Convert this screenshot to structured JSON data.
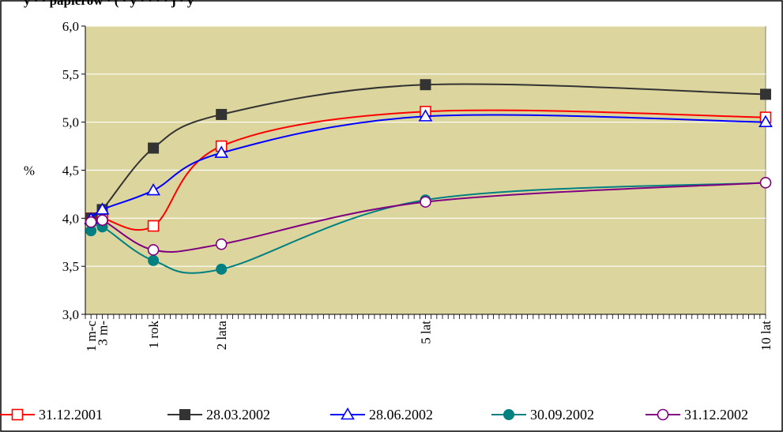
{
  "header": {
    "title_fragment": "y  ·  ·  papierów  ·  (  ·  y  ·  ·  ·  ·  j  ·  y"
  },
  "chart_data": {
    "type": "line",
    "title": "",
    "xlabel": "",
    "ylabel": "%",
    "ylim": [
      3.0,
      6.0
    ],
    "ytick_step": 0.5,
    "ytick_labels": [
      "3,0",
      "3,5",
      "4,0",
      "4,5",
      "5,0",
      "5,5",
      "6,0"
    ],
    "xlim": [
      0,
      120
    ],
    "x_unit": "months",
    "x_minor_tick_step": 1,
    "x_tick_labels": [
      {
        "x": 1,
        "label": "1 m-c"
      },
      {
        "x": 3,
        "label": "3 m-"
      },
      {
        "x": 12,
        "label": "1 rok"
      },
      {
        "x": 24,
        "label": "2 lata"
      },
      {
        "x": 60,
        "label": "5 lat"
      },
      {
        "x": 120,
        "label": "10 lat"
      }
    ],
    "grid": true,
    "plot_background": "#dcd59e",
    "legend_position": "bottom",
    "series": [
      {
        "name": "31.12.2001",
        "color": "#ff0000",
        "marker": "square-open",
        "x": [
          1,
          3,
          12,
          24,
          60,
          120
        ],
        "y": [
          4.0,
          4.0,
          3.92,
          4.75,
          5.11,
          5.05
        ]
      },
      {
        "name": "28.03.2002",
        "color": "#333333",
        "marker": "square-filled",
        "x": [
          1,
          3,
          12,
          24,
          60,
          120
        ],
        "y": [
          4.0,
          4.09,
          4.73,
          5.08,
          5.39,
          5.29
        ]
      },
      {
        "name": "28.06.2002",
        "color": "#0000ff",
        "marker": "triangle-open",
        "x": [
          1,
          3,
          12,
          24,
          60,
          120
        ],
        "y": [
          3.99,
          4.09,
          4.29,
          4.68,
          5.06,
          5.0
        ]
      },
      {
        "name": "30.09.2002",
        "color": "#008080",
        "marker": "circle-filled",
        "x": [
          1,
          3,
          12,
          24,
          60,
          120
        ],
        "y": [
          3.87,
          3.91,
          3.56,
          3.47,
          4.19,
          4.37
        ]
      },
      {
        "name": "31.12.2002",
        "color": "#800080",
        "marker": "circle-open",
        "x": [
          1,
          3,
          12,
          24,
          60,
          120
        ],
        "y": [
          3.96,
          3.98,
          3.67,
          3.73,
          4.17,
          4.37
        ]
      }
    ]
  }
}
